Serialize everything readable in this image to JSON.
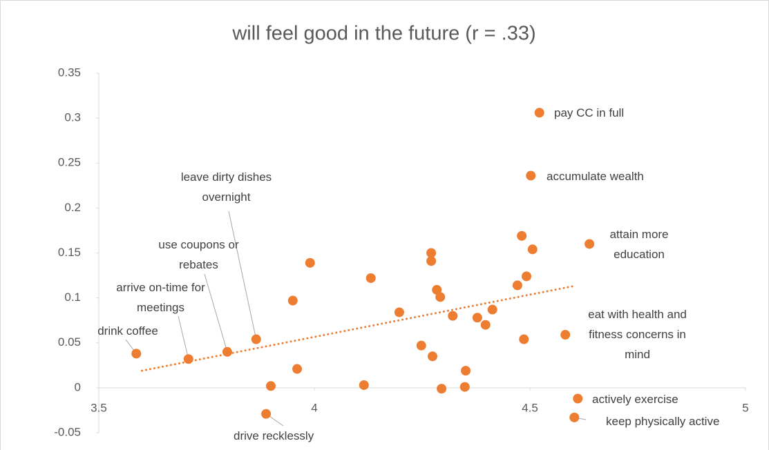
{
  "chart_data": {
    "type": "scatter",
    "title": "will feel good in the future (r = .33)",
    "xlim": [
      3.5,
      5
    ],
    "xticks": [
      3.5,
      4,
      4.5,
      5
    ],
    "ylim": [
      -0.05,
      0.35
    ],
    "yticks": [
      -0.05,
      0,
      0.05,
      0.1,
      0.15,
      0.2,
      0.25,
      0.3,
      0.35
    ],
    "grid": false,
    "series": [
      {
        "color": "#ED7D31",
        "x": [
          3.587,
          3.708,
          3.798,
          3.865,
          3.888,
          4.522,
          4.502,
          4.638,
          4.582,
          4.611,
          4.603,
          3.899,
          3.96,
          3.95,
          3.99,
          4.115,
          4.131,
          4.197,
          4.248,
          4.271,
          4.271,
          4.274,
          4.284,
          4.292,
          4.295,
          4.321,
          4.351,
          4.349,
          4.378,
          4.397,
          4.413,
          4.471,
          4.481,
          4.486,
          4.492,
          4.506
        ],
        "values": [
          0.038,
          0.032,
          0.04,
          0.054,
          -0.029,
          0.306,
          0.236,
          0.16,
          0.059,
          -0.012,
          -0.033,
          0.002,
          0.021,
          0.097,
          0.139,
          0.003,
          0.122,
          0.084,
          0.047,
          0.15,
          0.141,
          0.035,
          0.109,
          0.101,
          -0.001,
          0.08,
          0.019,
          0.001,
          0.078,
          0.07,
          0.087,
          0.114,
          0.169,
          0.054,
          0.124,
          0.154
        ],
        "labels": [
          "drink coffee",
          "arrive on-time for meetings",
          "use coupons or rebates",
          "leave dirty dishes overnight",
          "drive recklessly",
          "pay CC in full",
          "accumulate wealth",
          "attain more education",
          "eat with health and fitness concerns in mind",
          "actively exercise",
          "keep physically active",
          null,
          null,
          null,
          null,
          null,
          null,
          null,
          null,
          null,
          null,
          null,
          null,
          null,
          null,
          null,
          null,
          null,
          null,
          null,
          null,
          null,
          null,
          null,
          null,
          null
        ]
      }
    ],
    "trendline": {
      "x": [
        3.6,
        4.6
      ],
      "values": [
        0.019,
        0.113
      ],
      "color": "#ED7D31"
    }
  }
}
